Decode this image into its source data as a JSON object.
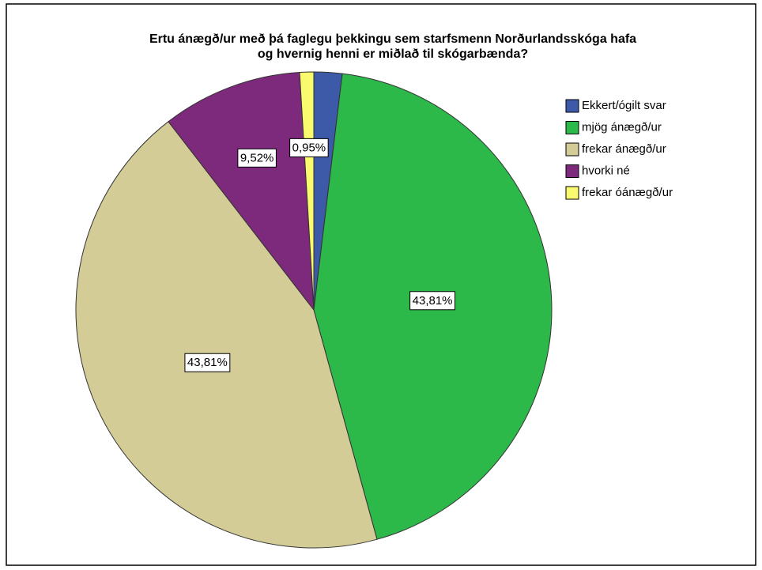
{
  "chart_data": {
    "type": "pie",
    "title": [
      "Ertu ánægð/ur með þá faglegu þekkingu sem starfsmenn Norðurlandsskóga hafa",
      "og hvernig henni er miðlað til skógarbænda?"
    ],
    "categories": [
      "Ekkert/ógilt svar",
      "mjög ánægð/ur",
      "frekar ánægð/ur",
      "hvorki né",
      "frekar óánægð/ur"
    ],
    "values": [
      1.91,
      43.81,
      43.81,
      9.52,
      0.95
    ],
    "value_labels": [
      null,
      "43,81%",
      "43,81%",
      "9,52%",
      "0,95%"
    ],
    "colors": [
      "#3d5aa9",
      "#2db84a",
      "#d4cc96",
      "#7d2a7d",
      "#fafa6e"
    ],
    "legend": "right"
  }
}
